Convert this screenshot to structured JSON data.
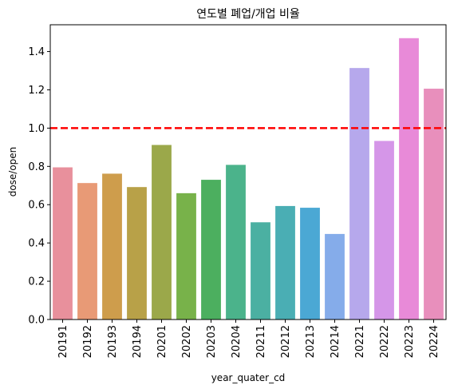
{
  "chart_data": {
    "type": "bar",
    "title": "연도별 폐업/개업 비율",
    "xlabel": "year_quater_cd",
    "ylabel": "dose/open",
    "categories": [
      "20191",
      "20192",
      "20193",
      "20194",
      "20201",
      "20202",
      "20203",
      "20204",
      "20211",
      "20212",
      "20213",
      "20214",
      "20221",
      "20222",
      "20223",
      "20224"
    ],
    "values": [
      0.795,
      0.713,
      0.762,
      0.692,
      0.912,
      0.66,
      0.73,
      0.808,
      0.508,
      0.593,
      0.584,
      0.447,
      1.314,
      0.933,
      1.47,
      1.206
    ],
    "colors": [
      "#e8909c",
      "#e89a76",
      "#ce9d4c",
      "#b8a148",
      "#9ba84a",
      "#78b24a",
      "#4caf5f",
      "#4bb38b",
      "#4bb0a2",
      "#4aaeb4",
      "#4ba8d4",
      "#85acea",
      "#b6a8ec",
      "#d596e8",
      "#e88ad8",
      "#e88fbc"
    ],
    "reference_line": {
      "y": 1.0,
      "color": "#ff0000",
      "style": "dashed"
    },
    "ylim": [
      0,
      1.54
    ],
    "yticks": [
      "0.0",
      "0.2",
      "0.4",
      "0.6",
      "0.8",
      "1.0",
      "1.2",
      "1.4"
    ],
    "grid": false,
    "legend": "none"
  }
}
